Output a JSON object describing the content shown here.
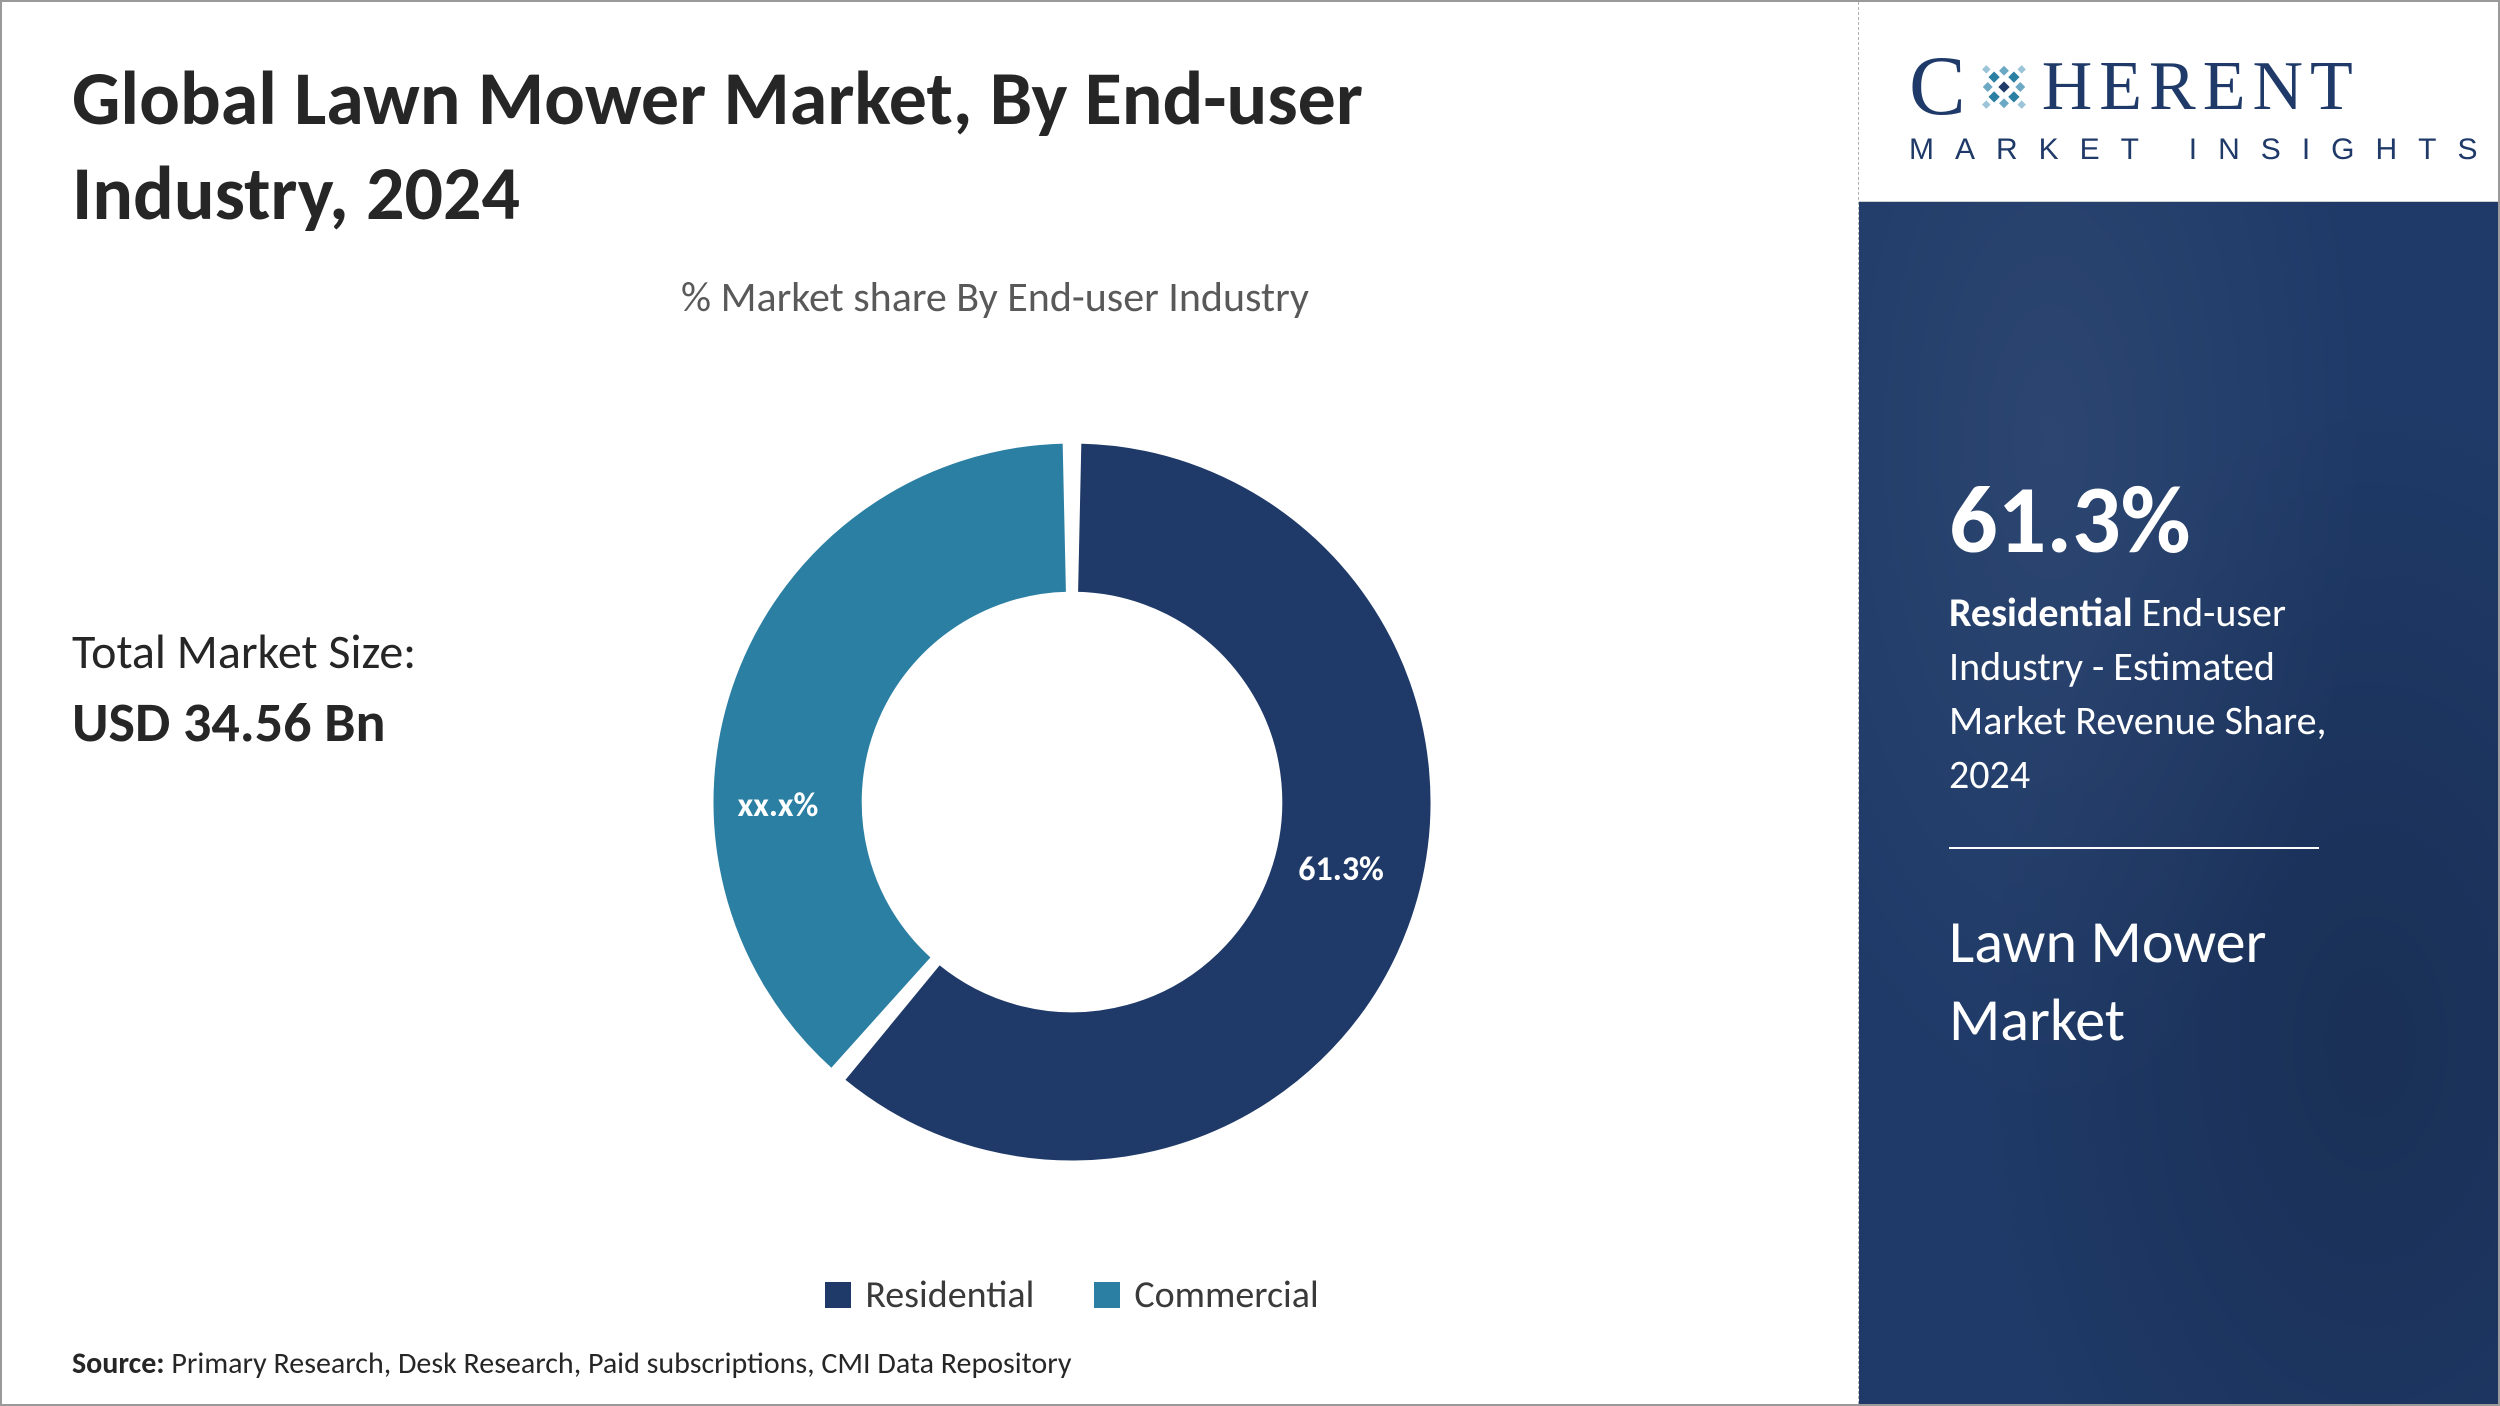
{
  "title": "Global Lawn Mower Market, By End-user Industry, 2024",
  "subtitle": "% Market share By End-user Industry",
  "market_size": {
    "label": "Total Market Size:",
    "value": "USD 34.56 Bn"
  },
  "chart": {
    "type": "donut",
    "background_color": "#ffffff",
    "inner_radius_pct": 58,
    "gap_deg": 2.5,
    "start_angle_deg": -90,
    "slices": [
      {
        "name": "Residential",
        "value": 61.3,
        "label": "61.3%",
        "color": "#1f3a68",
        "label_color": "#ffffff",
        "label_fontsize": 34
      },
      {
        "name": "Commercial",
        "value": 38.7,
        "label": "xx.x%",
        "color": "#2b7fa3",
        "label_color": "#ffffff",
        "label_fontsize": 34
      }
    ],
    "legend": {
      "fontsize": 38,
      "text_color": "#3a3a3a"
    }
  },
  "source": {
    "label": "Source:",
    "text": "Primary Research, Desk Research, Paid subscriptions, CMI Data Repository"
  },
  "logo": {
    "top_c": "C",
    "top_rest": "HERENT",
    "sub": "MARKET INSIGHTS",
    "brand_color": "#1f3a68",
    "accent_color": "#2b7fa3"
  },
  "side": {
    "pct": "61.3%",
    "desc_bold": "Residential",
    "desc_rest": " End-user Industry - Estimated Market Revenue Share, 2024",
    "market_name": "Lawn Mower Market",
    "panel_bg": "#1f3a68",
    "text_color": "#ffffff"
  }
}
